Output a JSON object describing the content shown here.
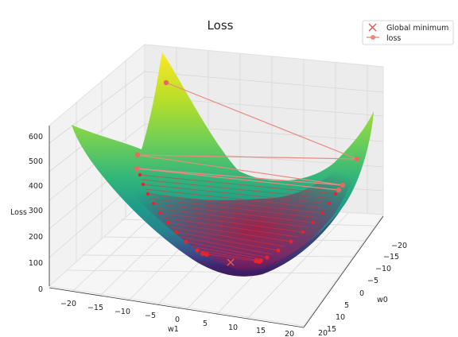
{
  "chart_data": {
    "type": "surface3d",
    "title": "Loss",
    "xlabel": "w1",
    "ylabel": "w0",
    "zlabel": "Loss",
    "x_ticks": [
      "−20",
      "−15",
      "−10",
      "−5",
      "0",
      "5",
      "10",
      "15",
      "20"
    ],
    "y_ticks": [
      "−20",
      "−15",
      "−10",
      "−5",
      "0",
      "5",
      "10",
      "15",
      "20"
    ],
    "z_ticks": [
      "0",
      "100",
      "200",
      "300",
      "400",
      "500",
      "600"
    ],
    "xlim": [
      -20,
      20
    ],
    "ylim": [
      -20,
      20
    ],
    "zlim": [
      0,
      600
    ],
    "surface": "paraboloid",
    "colormap": "viridis",
    "grid": true,
    "legend_position": "top-right",
    "legend": [
      {
        "label": "Global minimum",
        "marker": "x",
        "color": "#e05a4f"
      },
      {
        "label": "loss",
        "marker": "line-dot",
        "color": "#e88b80"
      }
    ],
    "series": [
      {
        "name": "loss",
        "points": [
          {
            "w1": -17,
            "w0": -18,
            "loss": 560
          },
          {
            "w1": 18,
            "w0": 16,
            "loss": 480
          },
          {
            "w1": -16,
            "w0": -16,
            "loss": 465
          },
          {
            "w1": 17,
            "w0": 14,
            "loss": 425
          },
          {
            "w1": -15,
            "w0": -15,
            "loss": 420
          },
          {
            "w1": 16,
            "w0": 13,
            "loss": 395
          },
          {
            "w1": -14,
            "w0": -14,
            "loss": 400
          },
          {
            "w1": 15,
            "w0": 12,
            "loss": 370
          }
        ]
      }
    ]
  }
}
